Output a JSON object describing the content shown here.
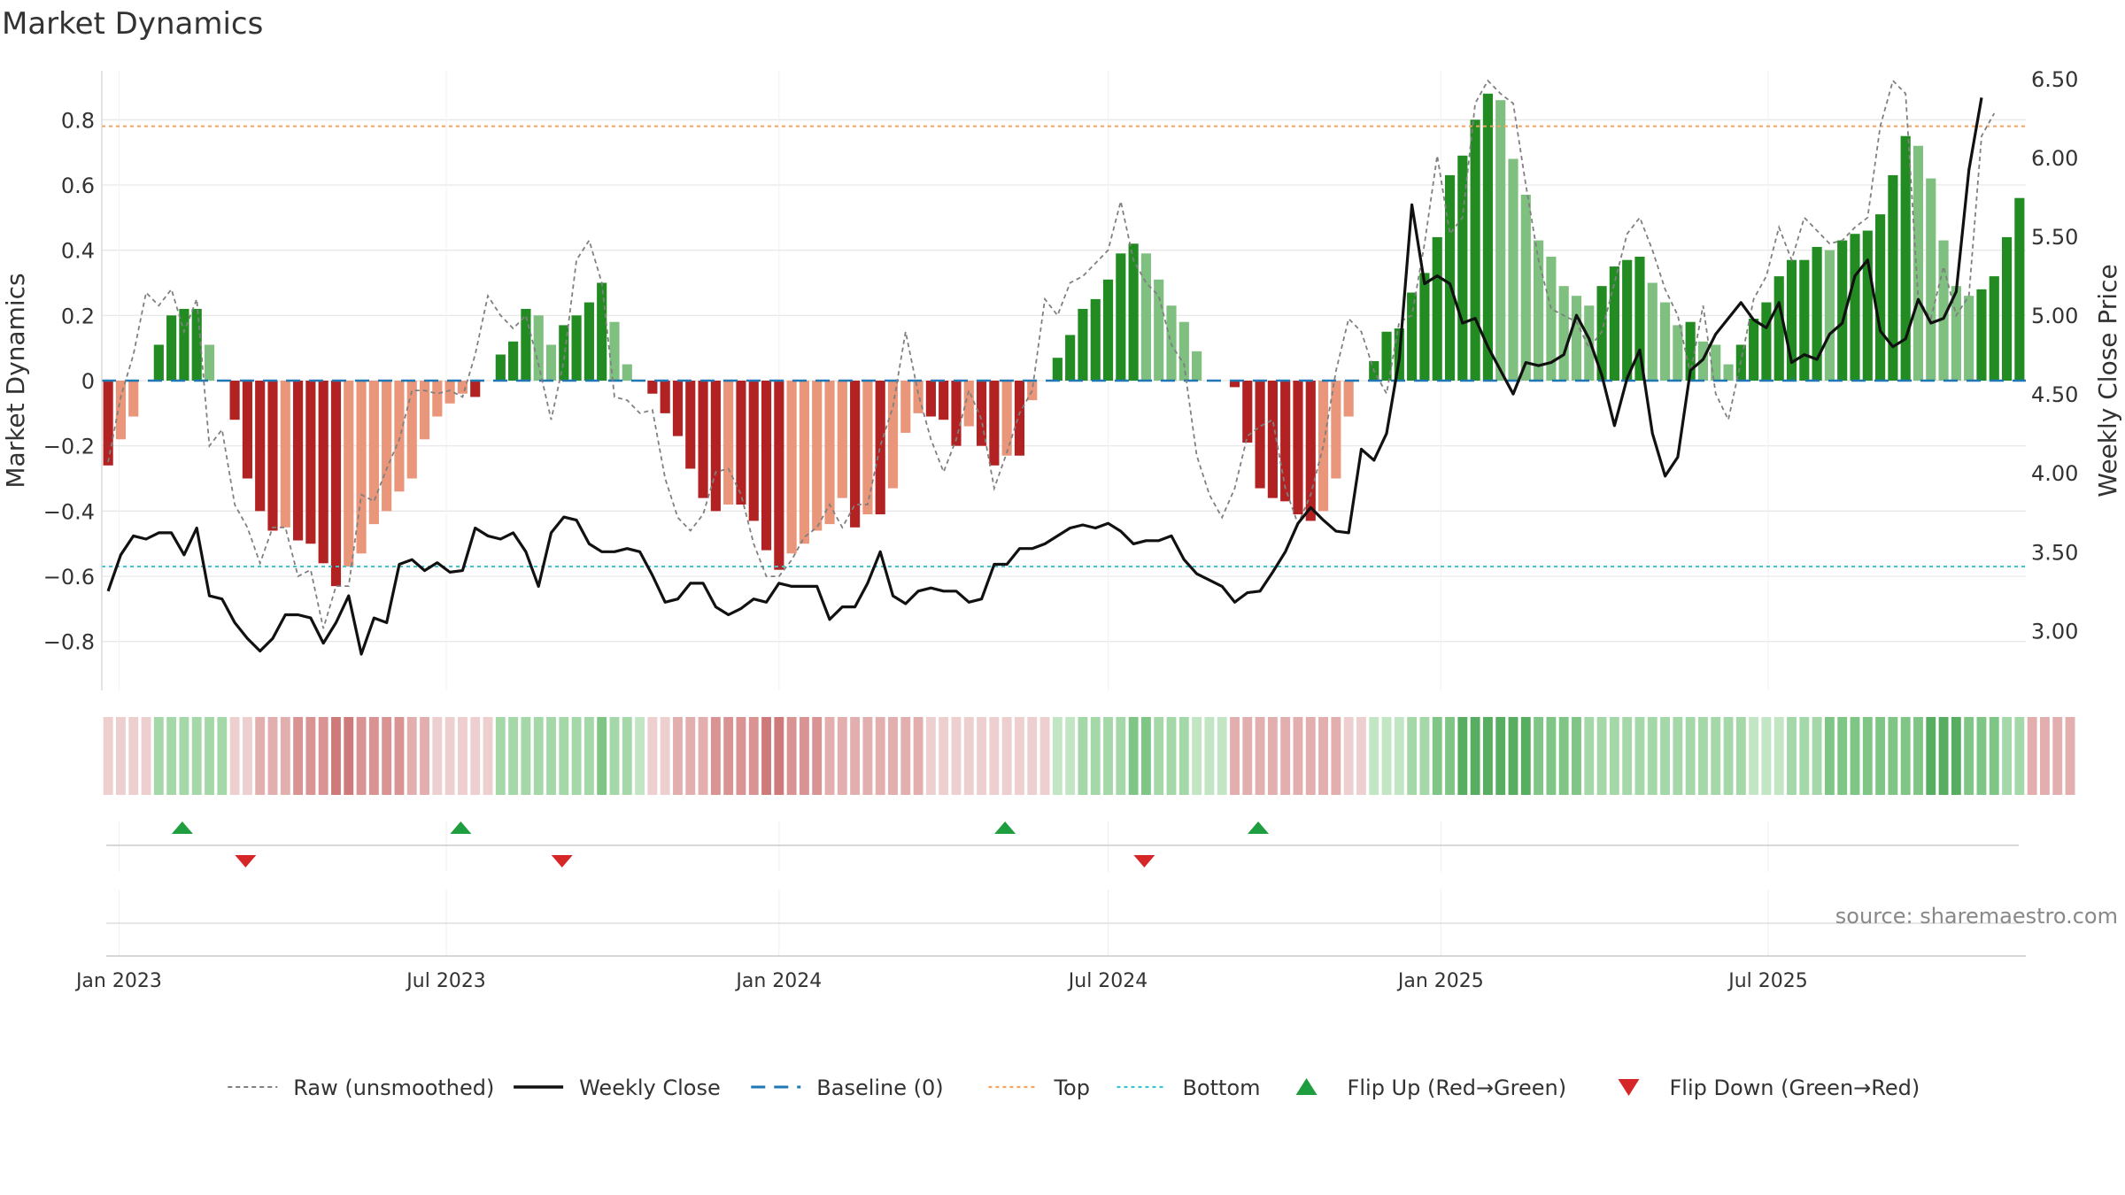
{
  "title": "Market Dynamics",
  "source": "source: sharemaestro.com",
  "colors": {
    "green_strong": "#228B22",
    "green_weak": "#7FBF7F",
    "red_strong": "#B22222",
    "red_weak": "#E9967A",
    "raw_line": "#808080",
    "close_line": "#111111",
    "baseline": "#1F77B4",
    "top": "#F4A460",
    "bottom": "#40C4D0",
    "flip_up": "#1E9E3E",
    "flip_down": "#D62728",
    "grid": "#E6E6E6"
  },
  "chart_data": {
    "type": "bar",
    "title": "Market Dynamics",
    "ylabel": "Market Dynamics",
    "y2label": "Weekly Close Price",
    "ylim": [
      -0.95,
      0.95
    ],
    "y2lim": [
      2.62,
      6.55
    ],
    "yticks": [
      "0.8",
      "0.6",
      "0.4",
      "0.2",
      "0",
      "−0.2",
      "−0.4",
      "−0.6",
      "−0.8"
    ],
    "y2ticks": [
      "6.50",
      "6.00",
      "5.50",
      "5.00",
      "4.50",
      "4.00",
      "3.50",
      "3.00"
    ],
    "xticks": [
      "Jan 2023",
      "Jul 2023",
      "Jan 2024",
      "Jul 2024",
      "Jan 2025",
      "Jul 2025"
    ],
    "xtick_dates": [
      "2023-01-01",
      "2023-07-01",
      "2024-01-01",
      "2024-07-01",
      "2025-01-01",
      "2025-07-01"
    ],
    "start_week": "2022-12-26",
    "top_level": 0.78,
    "bottom_level": -0.57,
    "baseline": 0,
    "smoothed": [
      -0.26,
      -0.18,
      -0.11,
      0,
      0.11,
      0.2,
      0.22,
      0.22,
      0.11,
      0,
      -0.12,
      -0.3,
      -0.4,
      -0.46,
      -0.45,
      -0.49,
      -0.5,
      -0.56,
      -0.63,
      -0.57,
      -0.53,
      -0.44,
      -0.4,
      -0.34,
      -0.3,
      -0.18,
      -0.11,
      -0.07,
      -0.04,
      -0.05,
      0,
      0.08,
      0.12,
      0.22,
      0.2,
      0.11,
      0.17,
      0.2,
      0.24,
      0.3,
      0.18,
      0.05,
      0,
      -0.04,
      -0.1,
      -0.17,
      -0.27,
      -0.36,
      -0.4,
      -0.38,
      -0.38,
      -0.43,
      -0.52,
      -0.58,
      -0.53,
      -0.5,
      -0.46,
      -0.44,
      -0.36,
      -0.45,
      -0.41,
      -0.41,
      -0.33,
      -0.16,
      -0.1,
      -0.11,
      -0.12,
      -0.2,
      -0.14,
      -0.2,
      -0.26,
      -0.23,
      -0.23,
      -0.06,
      0,
      0.07,
      0.14,
      0.22,
      0.25,
      0.31,
      0.39,
      0.42,
      0.39,
      0.31,
      0.23,
      0.18,
      0.09,
      0,
      0,
      -0.02,
      -0.19,
      -0.33,
      -0.36,
      -0.37,
      -0.41,
      -0.43,
      -0.4,
      -0.3,
      -0.11,
      0,
      0.06,
      0.15,
      0.16,
      0.27,
      0.33,
      0.44,
      0.63,
      0.69,
      0.8,
      0.88,
      0.86,
      0.68,
      0.57,
      0.43,
      0.38,
      0.29,
      0.26,
      0.23,
      0.29,
      0.35,
      0.37,
      0.38,
      0.3,
      0.24,
      0.17,
      0.18,
      0.12,
      0.11,
      0.05,
      0.11,
      0.19,
      0.24,
      0.32,
      0.37,
      0.37,
      0.41,
      0.4,
      0.43,
      0.45,
      0.46,
      0.51,
      0.63,
      0.75,
      0.72,
      0.62,
      0.43,
      0.29,
      0.26,
      0.28,
      0.32,
      0.44,
      0.56
    ],
    "raw": [
      -0.25,
      -0.05,
      0.08,
      0.27,
      0.23,
      0.28,
      0.15,
      0.25,
      -0.2,
      -0.15,
      -0.38,
      -0.45,
      -0.56,
      -0.45,
      -0.45,
      -0.6,
      -0.58,
      -0.76,
      -0.63,
      -0.63,
      -0.35,
      -0.37,
      -0.27,
      -0.18,
      -0.03,
      -0.03,
      -0.04,
      -0.03,
      -0.05,
      0.08,
      0.26,
      0.2,
      0.16,
      0.2,
      0.05,
      -0.12,
      0.06,
      0.37,
      0.43,
      0.3,
      -0.05,
      -0.06,
      -0.1,
      -0.09,
      -0.3,
      -0.42,
      -0.46,
      -0.41,
      -0.28,
      -0.27,
      -0.35,
      -0.5,
      -0.6,
      -0.6,
      -0.55,
      -0.48,
      -0.45,
      -0.38,
      -0.45,
      -0.38,
      -0.38,
      -0.2,
      -0.08,
      0.15,
      -0.04,
      -0.18,
      -0.28,
      -0.18,
      -0.03,
      -0.12,
      -0.33,
      -0.22,
      -0.1,
      -0.03,
      0.25,
      0.2,
      0.3,
      0.32,
      0.36,
      0.4,
      0.55,
      0.37,
      0.3,
      0.26,
      0.11,
      0.05,
      -0.23,
      -0.35,
      -0.42,
      -0.33,
      -0.17,
      -0.14,
      -0.12,
      -0.33,
      -0.44,
      -0.35,
      -0.2,
      0.03,
      0.19,
      0.15,
      0.03,
      -0.04,
      0.18,
      0.2,
      0.42,
      0.69,
      0.45,
      0.5,
      0.85,
      0.92,
      0.88,
      0.85,
      0.6,
      0.37,
      0.22,
      0.2,
      0.18,
      0.1,
      0.15,
      0.3,
      0.45,
      0.5,
      0.4,
      0.28,
      0.2,
      0.02,
      0.23,
      -0.04,
      -0.12,
      0.06,
      0.25,
      0.32,
      0.47,
      0.37,
      0.5,
      0.46,
      0.42,
      0.43,
      0.47,
      0.5,
      0.78,
      0.92,
      0.88,
      0.25,
      0.19,
      0.35,
      0.2,
      0.26,
      0.75,
      0.82
    ]
  },
  "price_series": [
    3.25,
    3.48,
    3.6,
    3.58,
    3.62,
    3.62,
    3.48,
    3.65,
    3.22,
    3.2,
    3.05,
    2.95,
    2.87,
    2.95,
    3.1,
    3.1,
    3.08,
    2.92,
    3.05,
    3.22,
    2.85,
    3.08,
    3.05,
    3.42,
    3.45,
    3.38,
    3.43,
    3.37,
    3.38,
    3.65,
    3.6,
    3.58,
    3.62,
    3.5,
    3.28,
    3.62,
    3.72,
    3.7,
    3.55,
    3.5,
    3.5,
    3.52,
    3.5,
    3.35,
    3.18,
    3.2,
    3.3,
    3.3,
    3.15,
    3.1,
    3.14,
    3.2,
    3.18,
    3.3,
    3.28,
    3.28,
    3.28,
    3.07,
    3.15,
    3.15,
    3.3,
    3.5,
    3.22,
    3.17,
    3.25,
    3.27,
    3.25,
    3.25,
    3.18,
    3.2,
    3.42,
    3.42,
    3.52,
    3.52,
    3.55,
    3.6,
    3.65,
    3.67,
    3.65,
    3.68,
    3.63,
    3.55,
    3.57,
    3.57,
    3.6,
    3.45,
    3.36,
    3.32,
    3.28,
    3.18,
    3.24,
    3.25,
    3.37,
    3.5,
    3.68,
    3.78,
    3.7,
    3.63,
    3.62,
    4.15,
    4.08,
    4.25,
    4.72,
    5.7,
    5.2,
    5.25,
    5.2,
    4.95,
    4.98,
    4.8,
    4.65,
    4.5,
    4.7,
    4.68,
    4.7,
    4.75,
    5.0,
    4.85,
    4.62,
    4.3,
    4.6,
    4.78,
    4.25,
    3.98,
    4.1,
    4.65,
    4.72,
    4.88,
    4.98,
    5.08,
    4.97,
    4.92,
    5.08,
    4.7,
    4.75,
    4.72,
    4.88,
    4.95,
    5.25,
    5.35,
    4.9,
    4.8,
    4.85,
    5.1,
    4.95,
    4.98,
    5.15,
    5.92,
    6.38
  ],
  "strip_intensity": [
    1,
    1,
    1,
    1,
    2,
    2,
    2,
    2,
    2,
    2,
    1,
    1,
    2,
    2,
    2,
    3,
    3,
    3,
    4,
    4,
    3,
    3,
    3,
    3,
    2,
    2,
    1,
    1,
    1,
    1,
    1,
    2,
    2,
    2,
    2,
    2,
    2,
    2,
    2,
    3,
    2,
    2,
    1,
    1,
    1,
    2,
    2,
    2,
    3,
    3,
    3,
    3,
    4,
    4,
    3,
    3,
    3,
    2,
    2,
    2,
    2,
    2,
    2,
    2,
    2,
    1,
    1,
    1,
    1,
    1,
    1,
    1,
    1,
    1,
    1,
    1,
    1,
    2,
    2,
    2,
    2,
    3,
    3,
    2,
    2,
    2,
    1,
    1,
    1,
    2,
    2,
    2,
    2,
    2,
    2,
    2,
    2,
    2,
    1,
    1,
    1,
    1,
    1,
    2,
    2,
    3,
    3,
    4,
    4,
    4,
    4,
    4,
    4,
    3,
    3,
    3,
    3,
    2,
    2,
    2,
    2,
    2,
    2,
    2,
    2,
    2,
    2,
    2,
    2,
    2,
    1,
    1,
    1,
    2,
    2,
    2,
    3,
    3,
    3,
    3,
    3,
    3,
    3,
    3,
    4,
    4,
    4,
    3,
    3,
    3,
    2,
    2,
    2,
    2,
    2,
    2
  ],
  "flips": {
    "up": [
      "2023-02-05",
      "2023-07-09",
      "2024-05-05",
      "2024-09-22"
    ],
    "down": [
      "2023-03-12",
      "2023-09-03",
      "2024-07-21"
    ]
  },
  "legend": [
    {
      "label": "Raw (unsmoothed)",
      "symbol": "dashed-gray"
    },
    {
      "label": "Weekly Close",
      "symbol": "solid-black"
    },
    {
      "label": "Baseline (0)",
      "symbol": "dashed-blue"
    },
    {
      "label": "Top",
      "symbol": "dotted-orange"
    },
    {
      "label": "Bottom",
      "symbol": "dotted-cyan"
    },
    {
      "label": "Flip Up (Red→Green)",
      "symbol": "triangle-up"
    },
    {
      "label": "Flip Down (Green→Red)",
      "symbol": "triangle-down"
    }
  ]
}
